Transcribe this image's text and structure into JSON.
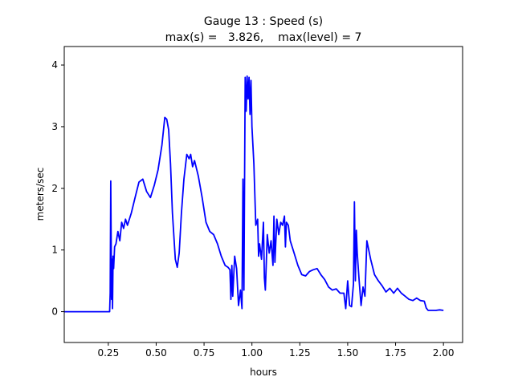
{
  "chart_data": {
    "type": "line",
    "title": "Gauge 13 : Speed (s)",
    "subtitle": "max(s) =   3.826,    max(level) = 7",
    "xlabel": "hours",
    "ylabel": "meters/sec",
    "xlim": [
      0.02,
      2.1
    ],
    "ylim": [
      -0.5,
      4.3
    ],
    "xticks": [
      0.25,
      0.5,
      0.75,
      1.0,
      1.25,
      1.5,
      1.75,
      2.0
    ],
    "xtick_labels": [
      "0.25",
      "0.50",
      "0.75",
      "1.00",
      "1.25",
      "1.50",
      "1.75",
      "2.00"
    ],
    "yticks": [
      0,
      1,
      2,
      3,
      4
    ],
    "ytick_labels": [
      "0",
      "1",
      "2",
      "3",
      "4"
    ],
    "grid": false,
    "line_color": "#0000ff",
    "x": [
      0.0,
      0.257,
      0.26,
      0.263,
      0.267,
      0.27,
      0.272,
      0.275,
      0.278,
      0.283,
      0.29,
      0.3,
      0.31,
      0.32,
      0.33,
      0.34,
      0.35,
      0.37,
      0.39,
      0.41,
      0.43,
      0.45,
      0.47,
      0.49,
      0.51,
      0.53,
      0.545,
      0.555,
      0.565,
      0.575,
      0.585,
      0.6,
      0.61,
      0.62,
      0.632,
      0.645,
      0.66,
      0.672,
      0.68,
      0.69,
      0.7,
      0.72,
      0.74,
      0.76,
      0.78,
      0.8,
      0.82,
      0.84,
      0.86,
      0.875,
      0.885,
      0.89,
      0.895,
      0.9,
      0.91,
      0.92,
      0.93,
      0.94,
      0.948,
      0.953,
      0.958,
      0.965,
      0.97,
      0.975,
      0.98,
      0.985,
      0.99,
      0.995,
      1.0,
      1.01,
      1.02,
      1.03,
      1.035,
      1.04,
      1.05,
      1.06,
      1.065,
      1.07,
      1.08,
      1.09,
      1.1,
      1.11,
      1.115,
      1.12,
      1.13,
      1.14,
      1.15,
      1.16,
      1.17,
      1.175,
      1.18,
      1.19,
      1.2,
      1.22,
      1.24,
      1.26,
      1.28,
      1.3,
      1.32,
      1.34,
      1.36,
      1.38,
      1.4,
      1.42,
      1.44,
      1.46,
      1.48,
      1.49,
      1.5,
      1.51,
      1.52,
      1.53,
      1.535,
      1.54,
      1.545,
      1.55,
      1.56,
      1.57,
      1.58,
      1.59,
      1.6,
      1.62,
      1.64,
      1.66,
      1.68,
      1.7,
      1.72,
      1.74,
      1.76,
      1.78,
      1.8,
      1.82,
      1.84,
      1.86,
      1.88,
      1.9,
      1.91,
      1.92,
      1.94,
      1.96,
      1.98,
      2.0
    ],
    "y": [
      0.0,
      0.0,
      0.3,
      2.12,
      0.2,
      0.85,
      0.05,
      0.9,
      0.7,
      1.05,
      1.1,
      1.3,
      1.15,
      1.45,
      1.35,
      1.5,
      1.4,
      1.6,
      1.85,
      2.1,
      2.15,
      1.95,
      1.85,
      2.05,
      2.3,
      2.7,
      3.15,
      3.12,
      2.95,
      2.4,
      1.6,
      0.85,
      0.72,
      0.95,
      1.6,
      2.15,
      2.55,
      2.48,
      2.55,
      2.35,
      2.45,
      2.2,
      1.85,
      1.45,
      1.3,
      1.25,
      1.1,
      0.9,
      0.75,
      0.72,
      0.68,
      0.2,
      0.75,
      0.25,
      0.9,
      0.7,
      0.1,
      0.35,
      0.05,
      2.15,
      0.35,
      3.8,
      3.25,
      3.82,
      3.45,
      3.8,
      3.2,
      3.75,
      3.0,
      2.4,
      1.4,
      1.5,
      0.9,
      1.1,
      0.85,
      1.45,
      0.55,
      0.35,
      1.25,
      0.95,
      1.15,
      0.75,
      1.55,
      0.8,
      1.5,
      1.25,
      1.45,
      1.4,
      1.55,
      1.05,
      1.45,
      1.4,
      1.15,
      0.95,
      0.75,
      0.6,
      0.58,
      0.65,
      0.68,
      0.7,
      0.6,
      0.52,
      0.4,
      0.35,
      0.37,
      0.3,
      0.3,
      0.05,
      0.5,
      0.1,
      0.08,
      0.45,
      1.78,
      0.5,
      1.32,
      0.95,
      0.5,
      0.1,
      0.4,
      0.25,
      1.15,
      0.85,
      0.6,
      0.5,
      0.42,
      0.32,
      0.38,
      0.3,
      0.38,
      0.3,
      0.25,
      0.2,
      0.18,
      0.22,
      0.18,
      0.17,
      0.06,
      0.02,
      0.02,
      0.02,
      0.03,
      0.02
    ]
  }
}
